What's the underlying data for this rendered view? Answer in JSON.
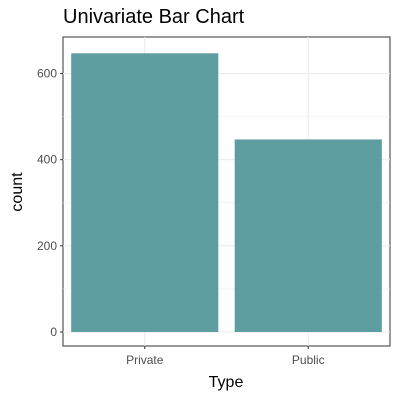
{
  "chart_data": {
    "type": "bar",
    "title": "Univariate Bar Chart",
    "xlabel": "Type",
    "ylabel": "count",
    "categories": [
      "Private",
      "Public"
    ],
    "values": [
      647,
      447
    ],
    "ylim": [
      0,
      680
    ],
    "yticks": [
      0,
      200,
      400,
      600
    ],
    "bar_color": "#5F9EA0",
    "grid": true,
    "grid_color": "#ebebeb",
    "panel_border_color": "#333333"
  }
}
